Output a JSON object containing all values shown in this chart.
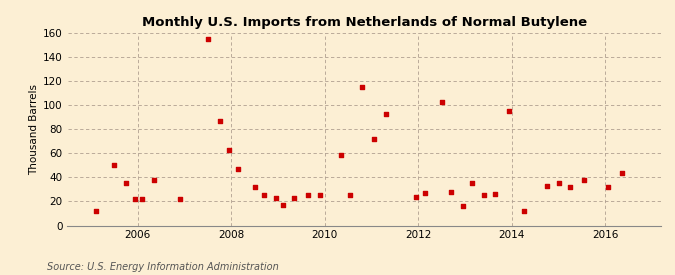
{
  "title": "Monthly U.S. Imports from Netherlands of Normal Butylene",
  "ylabel": "Thousand Barrels",
  "source": "Source: U.S. Energy Information Administration",
  "background_color": "#fcefd4",
  "plot_bg_color": "#fcefd4",
  "marker_color": "#cc0000",
  "ylim": [
    0,
    160
  ],
  "yticks": [
    0,
    20,
    40,
    60,
    80,
    100,
    120,
    140,
    160
  ],
  "xticks": [
    2006,
    2008,
    2010,
    2012,
    2014,
    2016
  ],
  "xlim": [
    2004.5,
    2017.2
  ],
  "data_x": [
    2005.1,
    2005.5,
    2005.75,
    2005.95,
    2006.1,
    2006.35,
    2006.9,
    2007.5,
    2007.75,
    2007.95,
    2008.15,
    2008.5,
    2008.7,
    2008.95,
    2009.1,
    2009.35,
    2009.65,
    2009.9,
    2010.35,
    2010.55,
    2010.8,
    2011.05,
    2011.3,
    2011.95,
    2012.15,
    2012.5,
    2012.7,
    2012.95,
    2013.15,
    2013.4,
    2013.65,
    2013.95,
    2014.25,
    2014.75,
    2015.0,
    2015.25,
    2015.55,
    2016.05,
    2016.35
  ],
  "data_y": [
    12,
    50,
    35,
    22,
    22,
    38,
    22,
    155,
    87,
    63,
    47,
    32,
    25,
    23,
    17,
    23,
    25,
    25,
    59,
    25,
    115,
    72,
    93,
    24,
    27,
    103,
    28,
    16,
    35,
    25,
    26,
    95,
    12,
    33,
    35,
    32,
    38,
    32,
    44
  ]
}
